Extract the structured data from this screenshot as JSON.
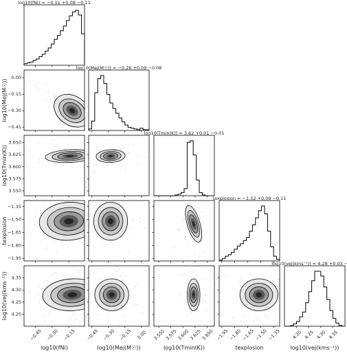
{
  "chart_data": {
    "type": "corner",
    "params": [
      {
        "key": "fNi",
        "axis_label": "log10(fNi)",
        "title": "log10(fNi) = −0.11 +0.08 −0.11",
        "lim": [
          -0.55,
          -0.01
        ],
        "ticks": [
          -0.45,
          -0.3,
          -0.15
        ],
        "tick_labels": [
          "−0.45",
          "−0.30",
          "−0.15"
        ],
        "hist": [
          2,
          3,
          4,
          6,
          8,
          11,
          14,
          18,
          22,
          27,
          33,
          38,
          44,
          50,
          57,
          63,
          68,
          70,
          64,
          40
        ]
      },
      {
        "key": "MejMsun",
        "axis_label": "log10(Mej(M☉))",
        "title": "log10(Mej(M☉)) = −0.26 +0.09 −0.08",
        "lim": [
          -0.48,
          0.07
        ],
        "ticks": [
          -0.45,
          -0.3,
          -0.15,
          0.0
        ],
        "tick_labels": [
          "−0.45",
          "−0.30",
          "−0.15",
          "0.00"
        ],
        "ticks_y": [
          -0.45,
          -0.3,
          -0.15,
          0.0
        ],
        "tick_labels_y": [
          "−0.45",
          "−0.30",
          "−0.15",
          "0.00"
        ],
        "hist": [
          2,
          12,
          48,
          66,
          70,
          60,
          46,
          35,
          28,
          22,
          16,
          11,
          7,
          4,
          3,
          2,
          1,
          3,
          1,
          1
        ]
      },
      {
        "key": "Tmin",
        "axis_label": "log10(Tmin(K))",
        "title": "log10(Tmin(K)) = 3.62 +0.01 −0.01",
        "lim": [
          3.54,
          3.665
        ],
        "ticks": [
          3.55,
          3.575,
          3.6,
          3.625,
          3.65
        ],
        "tick_labels": [
          "3.550",
          "3.575",
          "3.600",
          "3.625",
          "3.650"
        ],
        "ticks_y": [
          3.55,
          3.575,
          3.6,
          3.625,
          3.65
        ],
        "tick_labels_y": [
          "3.550",
          "3.575",
          "3.600",
          "3.625",
          "3.650"
        ],
        "hist": [
          0,
          0,
          0,
          0,
          0,
          0,
          0,
          1,
          2,
          4,
          9,
          68,
          70,
          52,
          20,
          4,
          1,
          0,
          0,
          0
        ]
      },
      {
        "key": "texplosion",
        "axis_label": "texplosion",
        "title": "texplosion = −1.52 +0.09 −0.11",
        "lim": [
          -1.98,
          -1.28
        ],
        "ticks": [
          -1.95,
          -1.8,
          -1.65,
          -1.5,
          -1.35
        ],
        "tick_labels": [
          "−1.95",
          "−1.80",
          "−1.65",
          "−1.50",
          "−1.35"
        ],
        "ticks_y": [
          -1.95,
          -1.8,
          -1.65,
          -1.5,
          -1.35
        ],
        "tick_labels_y": [
          "−1.95",
          "−1.80",
          "−1.65",
          "−1.50",
          "−1.35"
        ],
        "hist": [
          1,
          3,
          6,
          8,
          11,
          15,
          19,
          22,
          26,
          30,
          38,
          46,
          55,
          64,
          70,
          60,
          38,
          18,
          6,
          2
        ]
      },
      {
        "key": "vej",
        "axis_label": "log10(vej(kms⁻¹))",
        "title": "log10(vej(kms⁻¹)) = 4.28 +0.03 −0.03",
        "lim": [
          4.15,
          4.4
        ],
        "ticks": [
          4.2,
          4.25,
          4.3,
          4.35
        ],
        "tick_labels": [
          "4.20",
          "4.25",
          "4.30",
          "4.35"
        ],
        "ticks_y": [
          4.2,
          4.25,
          4.3,
          4.35
        ],
        "tick_labels_y": [
          "4.20",
          "4.25",
          "4.30",
          "4.35"
        ],
        "hist": [
          0,
          0,
          1,
          3,
          6,
          12,
          18,
          30,
          44,
          58,
          70,
          70,
          64,
          50,
          34,
          20,
          10,
          4,
          1,
          0
        ]
      }
    ],
    "y_axis_labels": [
      "",
      "log10(Mej(M☉))",
      "log10(Tmin(K))",
      "texplosion",
      "log10(vej(kms⁻¹))"
    ],
    "contours": [
      {
        "row": 1,
        "col": 0,
        "peak": [
          -0.12,
          -0.3
        ],
        "sd": [
          0.08,
          0.06
        ],
        "rho": -0.95
      },
      {
        "row": 2,
        "col": 0,
        "peak": [
          -0.14,
          3.622
        ],
        "sd": [
          0.1,
          0.006
        ],
        "rho": 0.2
      },
      {
        "row": 2,
        "col": 1,
        "peak": [
          -0.28,
          3.622
        ],
        "sd": [
          0.06,
          0.006
        ],
        "rho": 0.1
      },
      {
        "row": 3,
        "col": 0,
        "peak": [
          -0.15,
          -1.52
        ],
        "sd": [
          0.12,
          0.1
        ],
        "rho": 0.1
      },
      {
        "row": 3,
        "col": 1,
        "peak": [
          -0.28,
          -1.52
        ],
        "sd": [
          0.07,
          0.1
        ],
        "rho": 0.0
      },
      {
        "row": 3,
        "col": 2,
        "peak": [
          3.622,
          -1.55
        ],
        "sd": [
          0.006,
          0.1
        ],
        "rho": 0.1
      },
      {
        "row": 4,
        "col": 0,
        "peak": [
          -0.12,
          4.28
        ],
        "sd": [
          0.12,
          0.03
        ],
        "rho": 0.1
      },
      {
        "row": 4,
        "col": 1,
        "peak": [
          -0.27,
          4.28
        ],
        "sd": [
          0.07,
          0.03
        ],
        "rho": 0.0
      },
      {
        "row": 4,
        "col": 2,
        "peak": [
          3.622,
          4.28
        ],
        "sd": [
          0.006,
          0.03
        ],
        "rho": 0.0
      },
      {
        "row": 4,
        "col": 3,
        "peak": [
          -1.52,
          4.28
        ],
        "sd": [
          0.1,
          0.03
        ],
        "rho": 0.0
      }
    ],
    "colors": {
      "line": "#000000",
      "fill_levels": [
        "#e8e8e8",
        "#c8c8c8",
        "#9a9a9a",
        "#5a5a5a",
        "#262626"
      ],
      "scatter": "#9a9a9a"
    }
  }
}
